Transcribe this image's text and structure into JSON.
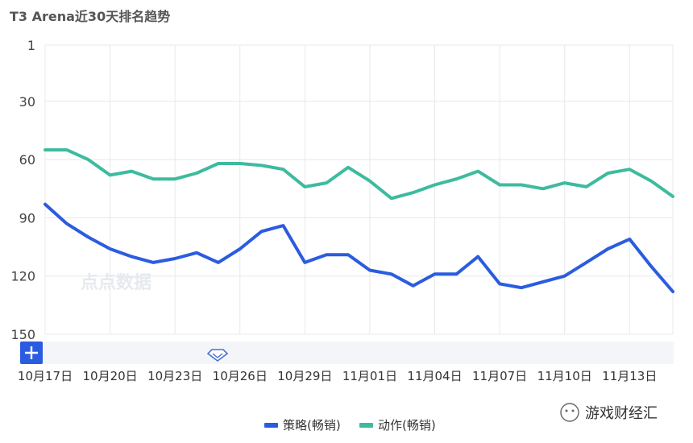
{
  "title": "T3 Arena近30天排名趋势",
  "watermark": "点点数据",
  "brand": "游戏财经汇",
  "colors": {
    "strategy": "#2b5ce0",
    "action": "#3dbb9e",
    "grid": "#e8e8e8",
    "slider_bg": "#f3f5f8"
  },
  "chart_data": {
    "type": "line",
    "title": "T3 Arena近30天排名趋势",
    "x": [
      "10月17日",
      "10月18日",
      "10月19日",
      "10月20日",
      "10月21日",
      "10月22日",
      "10月23日",
      "10月24日",
      "10月25日",
      "10月26日",
      "10月27日",
      "10月28日",
      "10月29日",
      "10月30日",
      "10月31日",
      "11月01日",
      "11月02日",
      "11月03日",
      "11月04日",
      "11月05日",
      "11月06日",
      "11月07日",
      "11月08日",
      "11月09日",
      "11月10日",
      "11月11日",
      "11月12日",
      "11月13日",
      "11月14日",
      "11月15日"
    ],
    "x_tick_labels": [
      "10月17日",
      "10月20日",
      "10月23日",
      "10月26日",
      "10月29日",
      "11月01日",
      "11月04日",
      "11月07日",
      "11月10日",
      "11月13日"
    ],
    "y_ticks": [
      1,
      30,
      60,
      90,
      120,
      150
    ],
    "ylim": [
      1,
      150
    ],
    "y_inverted": true,
    "grid": true,
    "legend_position": "bottom",
    "series": [
      {
        "name": "策略(畅销)",
        "values": [
          83,
          93,
          100,
          106,
          110,
          113,
          111,
          108,
          113,
          106,
          97,
          94,
          113,
          109,
          109,
          117,
          119,
          125,
          119,
          119,
          110,
          124,
          126,
          123,
          120,
          113,
          106,
          101,
          115,
          128
        ]
      },
      {
        "name": "动作(畅销)",
        "values": [
          55,
          55,
          60,
          68,
          66,
          70,
          70,
          67,
          62,
          62,
          63,
          65,
          74,
          72,
          64,
          71,
          80,
          77,
          73,
          70,
          66,
          73,
          73,
          75,
          72,
          74,
          67,
          65,
          71,
          79
        ]
      }
    ]
  }
}
